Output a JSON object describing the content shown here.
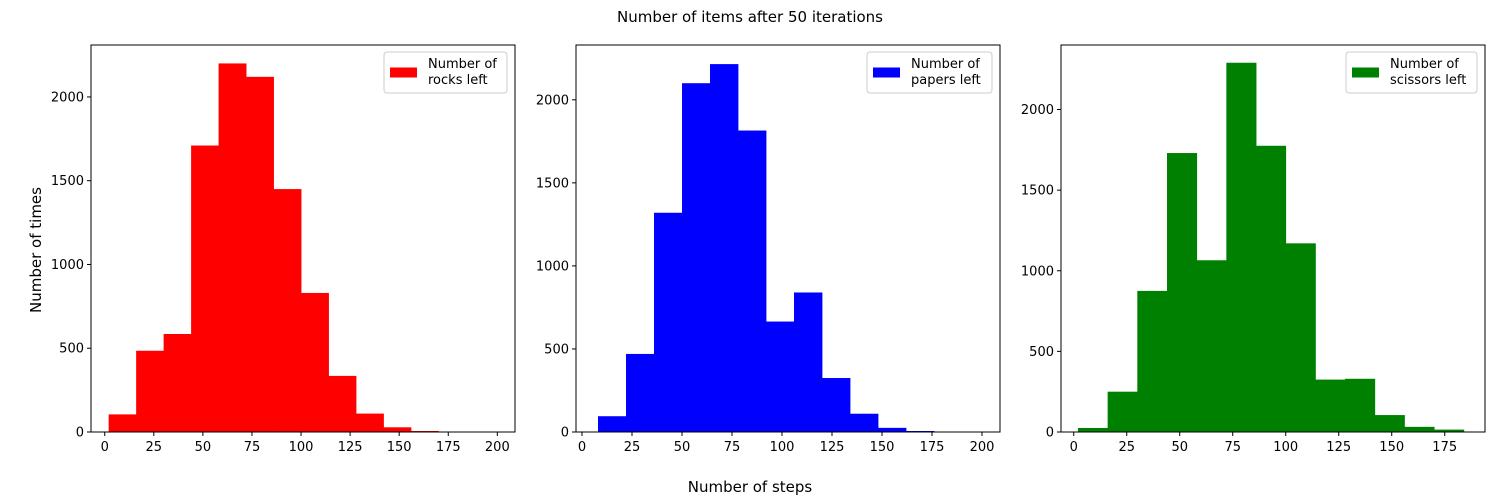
{
  "figure": {
    "suptitle": "Number of items after 50 iterations",
    "supxlabel": "Number of steps",
    "supylabel": "Number of times"
  },
  "chart_data": [
    {
      "type": "histogram",
      "title": "",
      "xlabel": "",
      "ylabel": "",
      "xlim": [
        -7,
        209
      ],
      "ylim": [
        0,
        2310
      ],
      "xticks": [
        0,
        25,
        50,
        75,
        100,
        125,
        150,
        175,
        200
      ],
      "yticks": [
        0,
        500,
        1000,
        1500,
        2000
      ],
      "color": "#ff0000",
      "legend_position": "upper right",
      "legend_label": [
        "Number of",
        "rocks left"
      ],
      "bin_edges": [
        2,
        16,
        30,
        44,
        58,
        72,
        86,
        100,
        114,
        128,
        142,
        156,
        170,
        184
      ],
      "counts": [
        105,
        485,
        585,
        1710,
        2200,
        2120,
        1450,
        830,
        335,
        110,
        28,
        6,
        2
      ]
    },
    {
      "type": "histogram",
      "title": "",
      "xlabel": "",
      "ylabel": "",
      "xlim": [
        -3,
        209
      ],
      "ylim": [
        0,
        2330
      ],
      "xticks": [
        0,
        25,
        50,
        75,
        100,
        125,
        150,
        175,
        200
      ],
      "yticks": [
        0,
        500,
        1000,
        1500,
        2000
      ],
      "color": "#0000ff",
      "legend_position": "upper right",
      "legend_label": [
        "Number of",
        "papers left"
      ],
      "bin_edges": [
        8,
        22,
        36,
        50,
        64,
        78,
        92,
        106,
        120,
        134,
        148,
        162,
        176,
        190
      ],
      "counts": [
        95,
        470,
        1320,
        2100,
        2215,
        1815,
        665,
        840,
        325,
        110,
        25,
        6,
        2
      ]
    },
    {
      "type": "histogram",
      "title": "",
      "xlabel": "",
      "ylabel": "",
      "xlim": [
        -6,
        194
      ],
      "ylim": [
        0,
        2400
      ],
      "xticks": [
        0,
        25,
        50,
        75,
        100,
        125,
        150,
        175
      ],
      "yticks": [
        0,
        500,
        1000,
        1500,
        2000
      ],
      "color": "#008000",
      "legend_position": "upper right",
      "legend_label": [
        "Number of",
        "scissors left"
      ],
      "bin_edges": [
        2,
        16,
        30,
        44,
        58,
        72,
        86,
        100,
        114,
        128,
        142,
        156,
        170,
        184
      ],
      "counts": [
        25,
        250,
        875,
        1730,
        1065,
        2290,
        1775,
        1170,
        325,
        330,
        105,
        32,
        15
      ]
    }
  ]
}
